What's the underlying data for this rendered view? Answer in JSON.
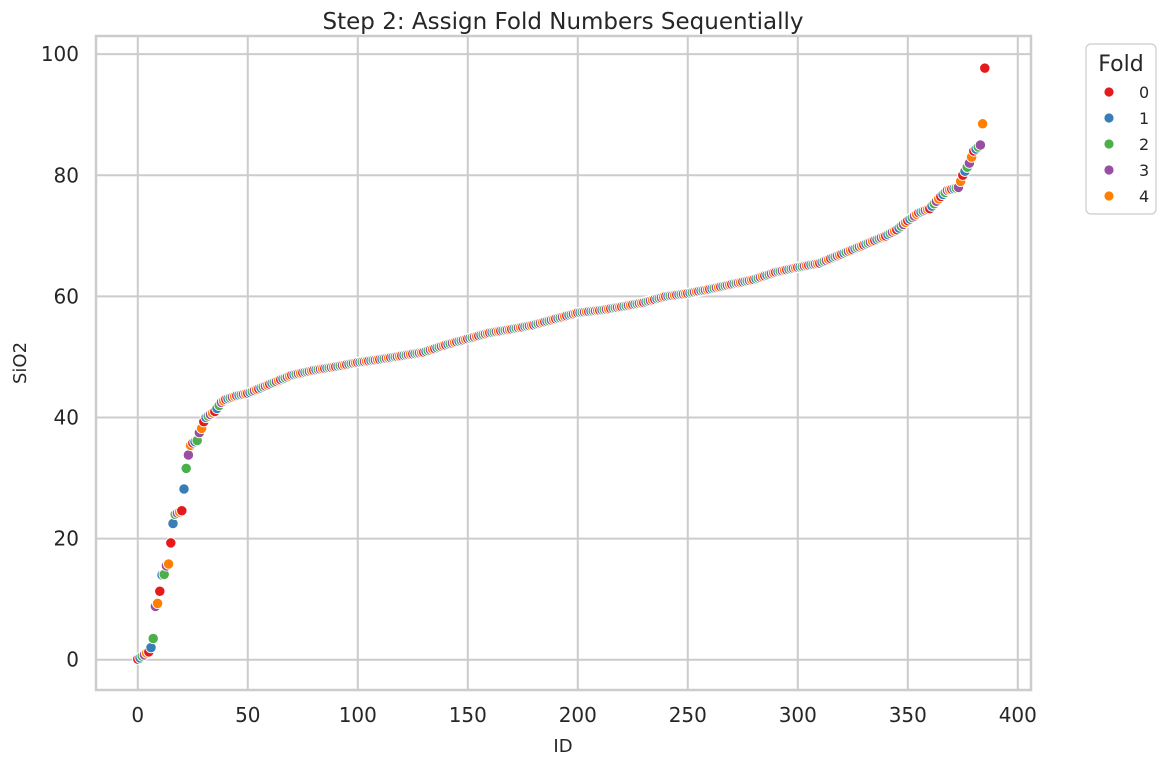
{
  "chart_data": {
    "type": "scatter",
    "title": "Step 2: Assign Fold Numbers Sequentially",
    "xlabel": "ID",
    "ylabel": "SiO2",
    "xlim": [
      -19,
      406
    ],
    "ylim": [
      -5,
      103
    ],
    "xticks": [
      0,
      50,
      100,
      150,
      200,
      250,
      300,
      350,
      400
    ],
    "yticks": [
      0,
      20,
      40,
      60,
      80,
      100
    ],
    "grid": true,
    "legend": {
      "title": "Fold",
      "placement": "upper-right-outside",
      "entries": [
        {
          "label": "0",
          "color": "#e41a1c"
        },
        {
          "label": "1",
          "color": "#377eb8"
        },
        {
          "label": "2",
          "color": "#4daf4a"
        },
        {
          "label": "3",
          "color": "#984ea3"
        },
        {
          "label": "4",
          "color": "#ff7f00"
        }
      ]
    },
    "fold_assignment": "fold = ID mod 5",
    "num_points": 386,
    "y_curve_anchors": [
      [
        0,
        0.1
      ],
      [
        1,
        0.3
      ],
      [
        2,
        0.6
      ],
      [
        3,
        0.8
      ],
      [
        4,
        1.1
      ],
      [
        5,
        1.3
      ],
      [
        6,
        2.0
      ],
      [
        7,
        3.5
      ],
      [
        8,
        8.8
      ],
      [
        9,
        9.3
      ],
      [
        10,
        11.3
      ],
      [
        11,
        14.0
      ],
      [
        12,
        14.1
      ],
      [
        13,
        15.5
      ],
      [
        14,
        15.8
      ],
      [
        15,
        19.3
      ],
      [
        16,
        22.5
      ],
      [
        17,
        24.0
      ],
      [
        18,
        24.2
      ],
      [
        19,
        24.4
      ],
      [
        20,
        24.6
      ],
      [
        21,
        28.2
      ],
      [
        22,
        31.6
      ],
      [
        23,
        33.8
      ],
      [
        24,
        35.4
      ],
      [
        25,
        35.8
      ],
      [
        26,
        36.0
      ],
      [
        27,
        36.2
      ],
      [
        28,
        37.5
      ],
      [
        29,
        38.2
      ],
      [
        30,
        39.3
      ],
      [
        31,
        40.0
      ],
      [
        33,
        40.5
      ],
      [
        35,
        41.0
      ],
      [
        36,
        41.5
      ],
      [
        38,
        42.5
      ],
      [
        40,
        43.0
      ],
      [
        45,
        43.6
      ],
      [
        50,
        44.0
      ],
      [
        60,
        45.5
      ],
      [
        70,
        47.0
      ],
      [
        80,
        47.8
      ],
      [
        90,
        48.4
      ],
      [
        100,
        49.1
      ],
      [
        110,
        49.6
      ],
      [
        120,
        50.2
      ],
      [
        130,
        50.8
      ],
      [
        140,
        52.0
      ],
      [
        150,
        53.0
      ],
      [
        160,
        54.0
      ],
      [
        170,
        54.6
      ],
      [
        180,
        55.3
      ],
      [
        190,
        56.3
      ],
      [
        200,
        57.3
      ],
      [
        210,
        57.7
      ],
      [
        220,
        58.3
      ],
      [
        230,
        59.0
      ],
      [
        240,
        60.0
      ],
      [
        250,
        60.5
      ],
      [
        260,
        61.2
      ],
      [
        270,
        62.0
      ],
      [
        280,
        62.8
      ],
      [
        290,
        64.0
      ],
      [
        300,
        64.8
      ],
      [
        310,
        65.5
      ],
      [
        320,
        67.0
      ],
      [
        330,
        68.5
      ],
      [
        340,
        70.0
      ],
      [
        345,
        71.0
      ],
      [
        350,
        72.5
      ],
      [
        355,
        73.8
      ],
      [
        360,
        74.5
      ],
      [
        365,
        76.5
      ],
      [
        368,
        77.5
      ],
      [
        373,
        78.0
      ],
      [
        375,
        80.0
      ],
      [
        378,
        82.0
      ],
      [
        380,
        84.0
      ],
      [
        383,
        85.0
      ],
      [
        384,
        88.5
      ],
      [
        385,
        97.7
      ]
    ]
  }
}
